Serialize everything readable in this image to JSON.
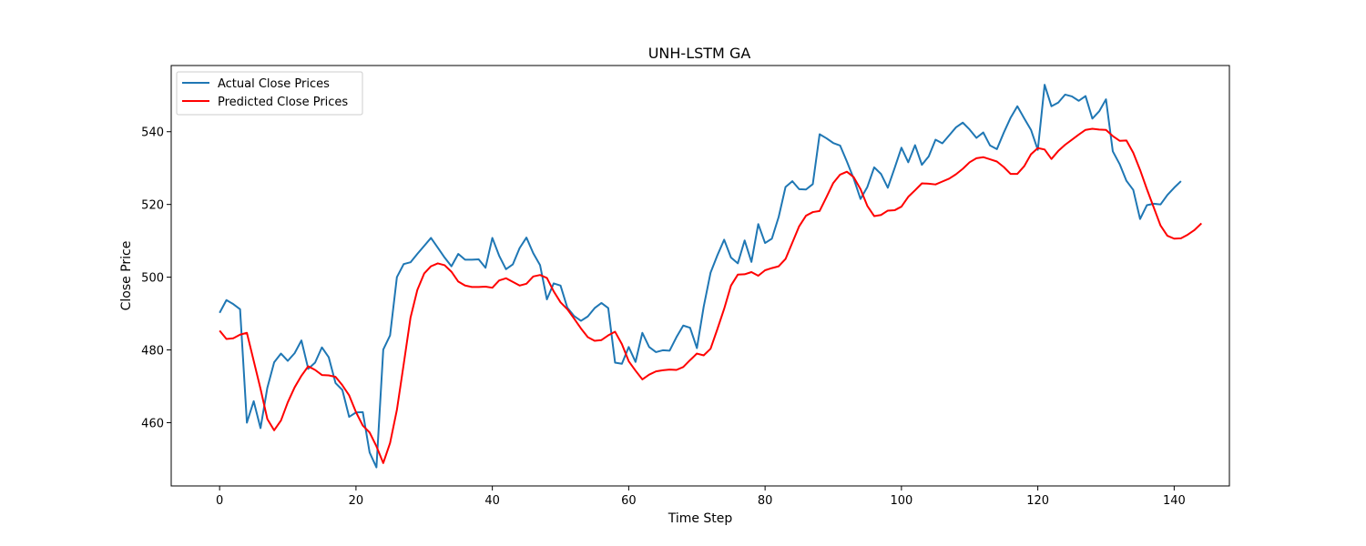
{
  "chart_data": {
    "type": "line",
    "title": "UNH-LSTM GA",
    "xlabel": "Time Step",
    "ylabel": "Close Price",
    "xlim": [
      -7.1,
      148.1
    ],
    "ylim": [
      442.6,
      558.2
    ],
    "xticks": [
      0,
      20,
      40,
      60,
      80,
      100,
      120,
      140
    ],
    "yticks": [
      460,
      480,
      500,
      520,
      540
    ],
    "grid": false,
    "legend_position": "top-left",
    "x_start": 0,
    "series": [
      {
        "name": "Actual Close Prices",
        "color": "#1f77b4",
        "values": [
          490.2,
          493.7,
          492.6,
          491.2,
          460.0,
          465.9,
          458.5,
          469.6,
          476.6,
          479.0,
          477.0,
          479.1,
          482.6,
          474.8,
          476.5,
          480.7,
          478.0,
          470.9,
          469.0,
          461.6,
          462.8,
          462.9,
          451.8,
          447.7,
          480.1,
          484.0,
          500.0,
          503.6,
          504.1,
          506.4,
          508.6,
          510.8,
          508.1,
          505.4,
          503.0,
          506.4,
          504.8,
          504.8,
          504.9,
          502.6,
          510.8,
          505.9,
          502.2,
          503.5,
          508.0,
          510.9,
          506.6,
          503.3,
          493.9,
          498.3,
          497.7,
          491.6,
          489.3,
          488.0,
          489.2,
          491.5,
          492.9,
          491.5,
          476.5,
          476.2,
          480.8,
          476.7,
          484.7,
          480.8,
          479.4,
          479.9,
          479.8,
          483.5,
          486.7,
          486.1,
          480.5,
          491.9,
          501.2,
          506.0,
          510.3,
          505.4,
          503.8,
          510.1,
          504.2,
          514.6,
          509.4,
          510.6,
          516.6,
          524.8,
          526.4,
          524.2,
          524.1,
          525.6,
          539.3,
          538.2,
          536.9,
          536.2,
          531.8,
          527.1,
          521.5,
          524.8,
          530.2,
          528.4,
          524.6,
          530.0,
          535.6,
          531.6,
          536.3,
          530.9,
          533.2,
          537.8,
          536.8,
          539.0,
          541.2,
          542.5,
          540.6,
          538.3,
          539.8,
          536.2,
          535.2,
          539.7,
          543.8,
          547.0,
          543.7,
          540.5,
          535.0,
          552.9,
          547.0,
          548.0,
          550.2,
          549.7,
          548.5,
          549.8,
          543.6,
          545.6,
          548.9,
          534.6,
          531.1,
          526.5,
          524.0,
          516.0,
          519.8,
          520.2,
          520.0,
          522.6,
          524.6,
          526.4
        ]
      },
      {
        "name": "Predicted Close Prices",
        "color": "#ff0000",
        "values": [
          485.3,
          483.0,
          483.2,
          484.2,
          484.7,
          477.0,
          469.3,
          461.0,
          457.9,
          460.6,
          465.6,
          469.7,
          472.9,
          475.5,
          474.5,
          473.1,
          473.0,
          472.6,
          470.3,
          467.5,
          462.9,
          459.2,
          457.3,
          453.5,
          448.9,
          454.4,
          463.5,
          476.1,
          488.9,
          496.5,
          501.0,
          503.0,
          503.8,
          503.3,
          501.5,
          498.8,
          497.7,
          497.3,
          497.3,
          497.4,
          497.1,
          499.1,
          499.7,
          498.7,
          497.7,
          498.2,
          500.2,
          500.6,
          499.8,
          496.1,
          493.1,
          491.2,
          488.6,
          485.9,
          483.5,
          482.5,
          482.7,
          484.0,
          485.0,
          481.6,
          476.9,
          474.3,
          471.9,
          473.2,
          474.1,
          474.4,
          474.6,
          474.5,
          475.3,
          477.2,
          479.0,
          478.5,
          480.3,
          485.7,
          491.3,
          497.7,
          500.7,
          500.8,
          501.4,
          500.4,
          501.9,
          502.5,
          503.0,
          505.0,
          509.5,
          514.0,
          516.9,
          517.9,
          518.2,
          522.0,
          525.9,
          528.2,
          529.0,
          527.5,
          524.2,
          519.6,
          516.8,
          517.1,
          518.3,
          518.4,
          519.4,
          522.1,
          523.9,
          525.8,
          525.7,
          525.5,
          526.3,
          527.1,
          528.3,
          529.8,
          531.6,
          532.7,
          533.0,
          532.4,
          531.8,
          530.3,
          528.4,
          528.4,
          530.5,
          533.8,
          535.5,
          535.1,
          532.5,
          534.7,
          536.4,
          537.8,
          539.2,
          540.5,
          540.8,
          540.6,
          540.5,
          538.8,
          537.5,
          537.6,
          534.2,
          529.5,
          524.2,
          519.2,
          514.2,
          511.4,
          510.6,
          510.7,
          511.7,
          513.0,
          514.8
        ]
      }
    ]
  }
}
